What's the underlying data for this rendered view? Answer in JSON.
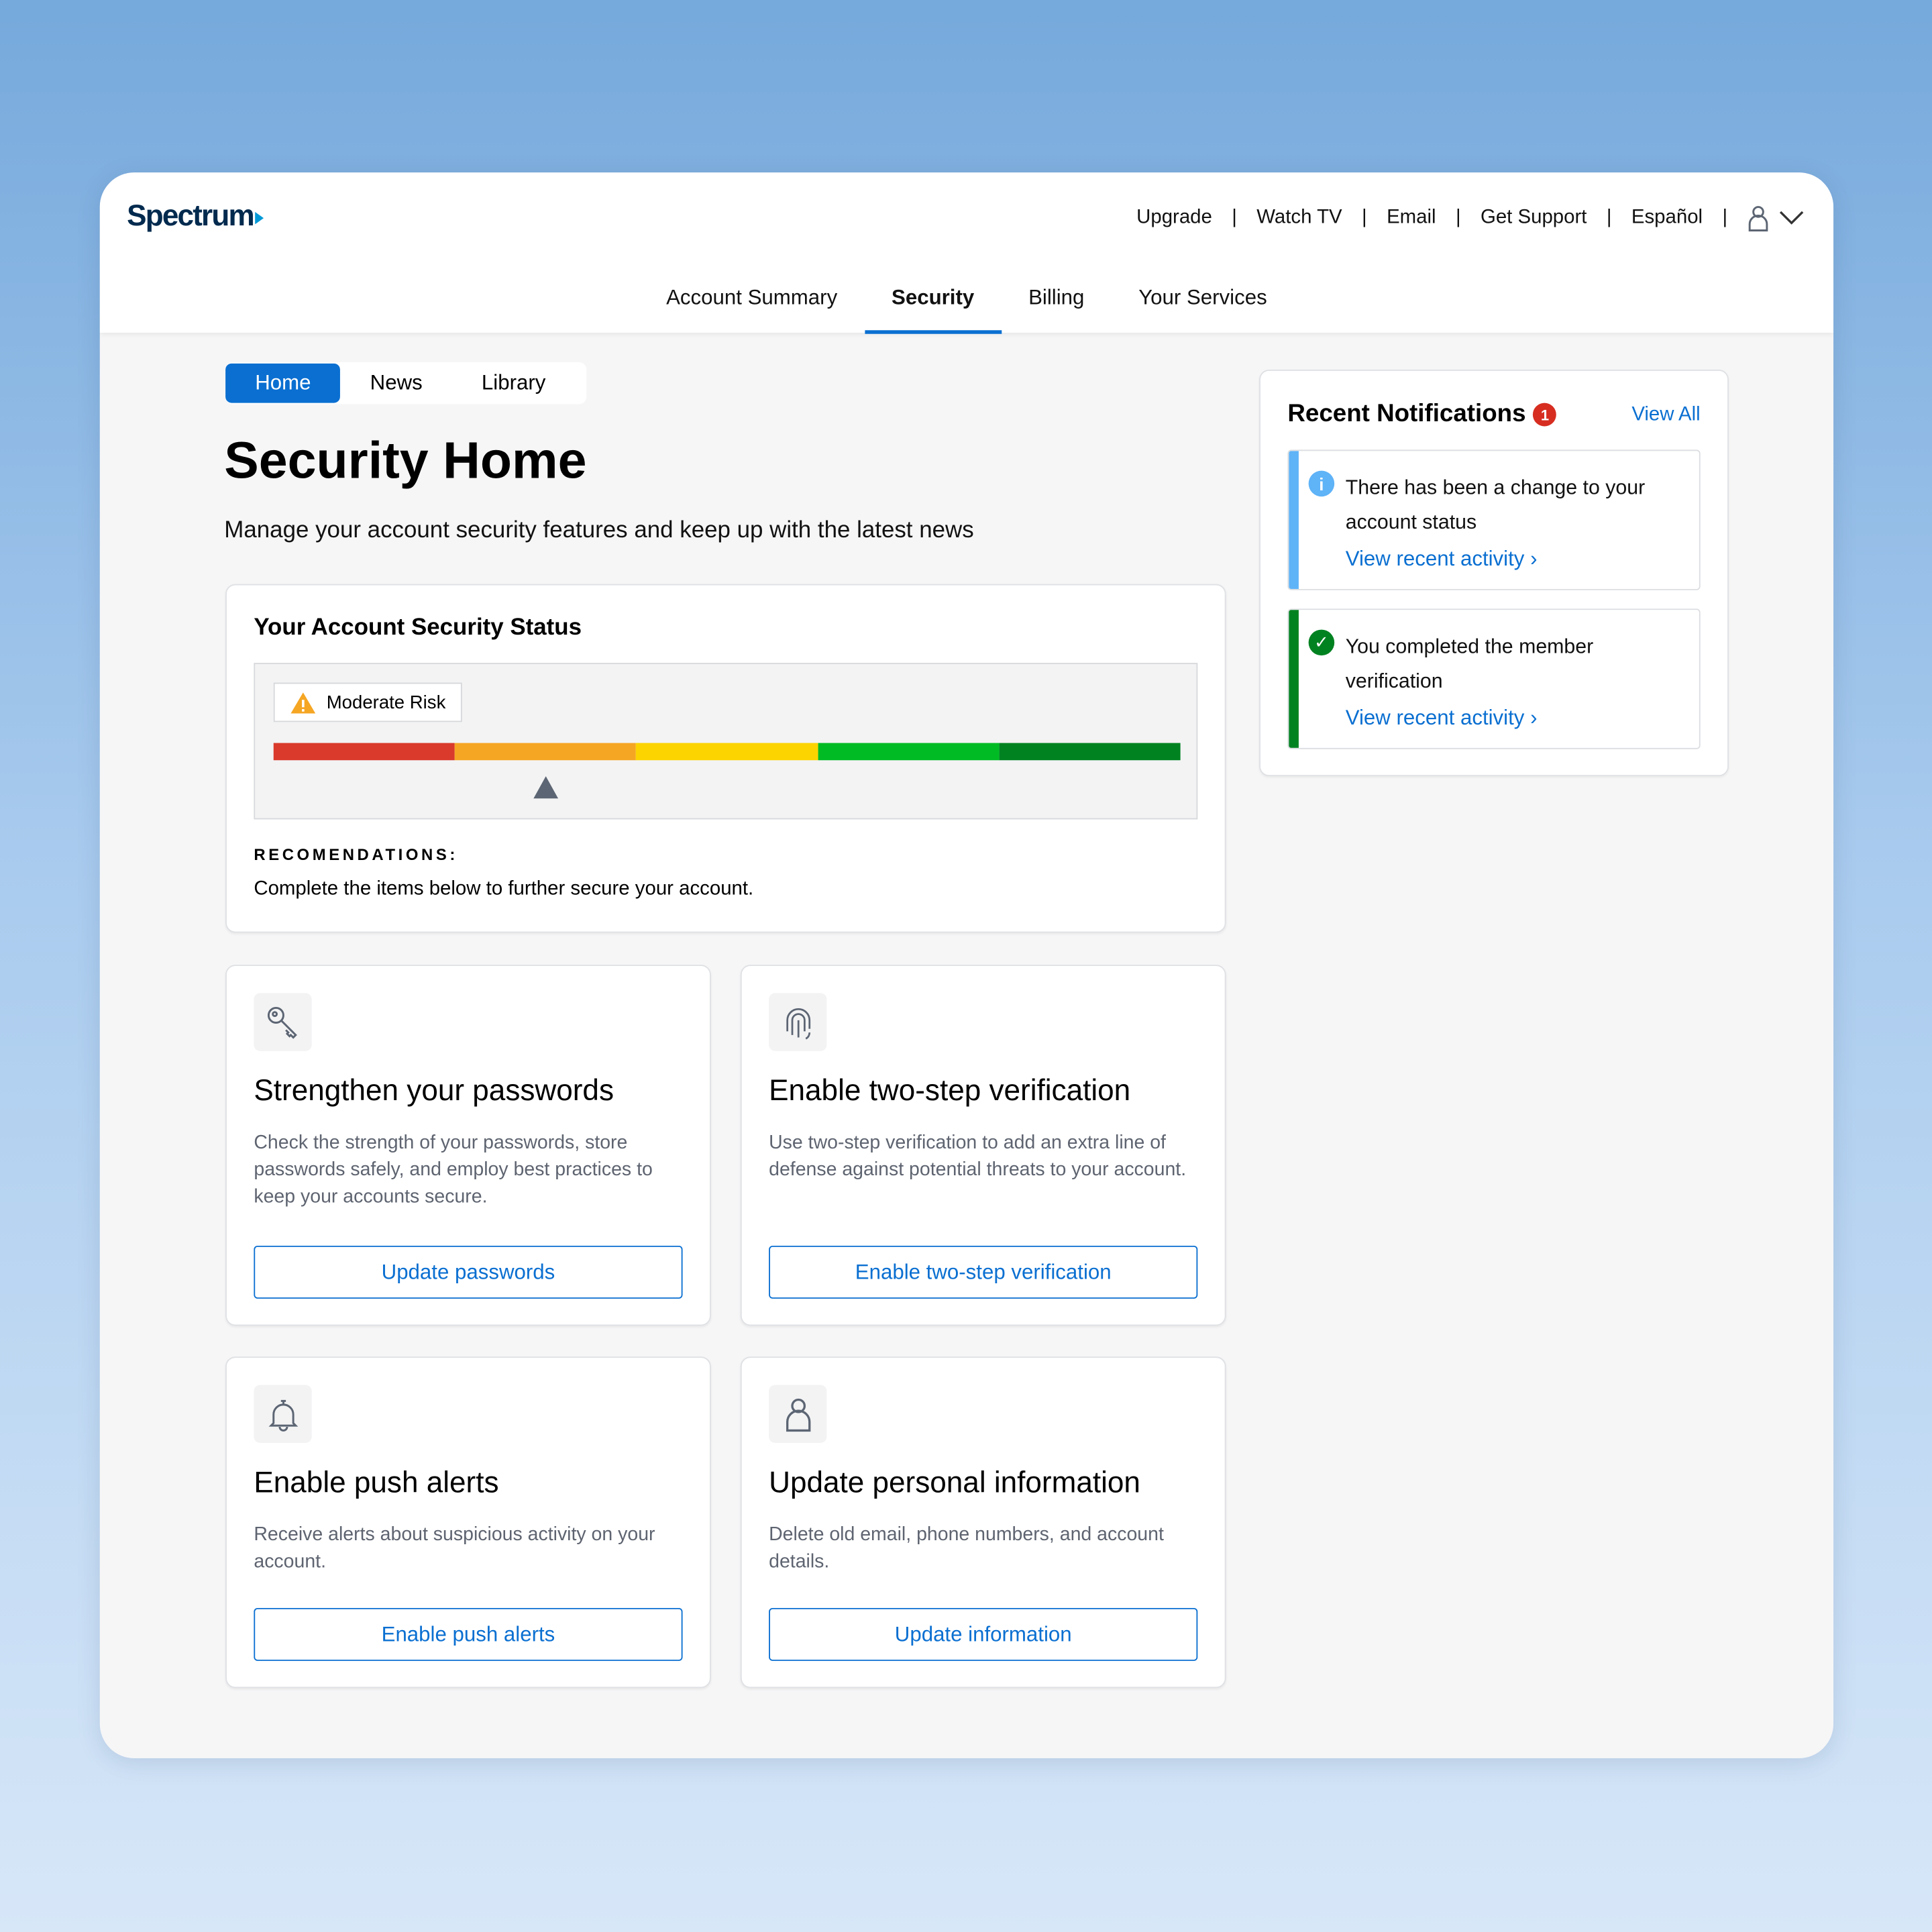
{
  "brand": {
    "logo": "Spectrum",
    "accent": "#0a6fd1"
  },
  "top_links": [
    "Upgrade",
    "Watch TV",
    "Email",
    "Get Support",
    "Español"
  ],
  "nav": {
    "tabs": [
      "Account Summary",
      "Security",
      "Billing",
      "Your Services"
    ],
    "active": "Security"
  },
  "subtabs": {
    "items": [
      "Home",
      "News",
      "Library"
    ],
    "active": "Home"
  },
  "page": {
    "title": "Security Home",
    "subtitle": "Manage your account security features and keep up with the latest news"
  },
  "status": {
    "title": "Your Account Security Status",
    "risk_label": "Moderate Risk",
    "risk_level_fraction": 0.3,
    "scale_colors": [
      "#d93a2b",
      "#f5a623",
      "#fcd400",
      "#00bb24",
      "#008221"
    ],
    "recommendations_heading": "RECOMENDATIONS:",
    "recommendations_text": "Complete the items below to further secure your account."
  },
  "tiles": [
    {
      "icon": "key-icon",
      "title": "Strengthen your passwords",
      "text": "Check the strength of your passwords, store passwords safely, and employ best practices to keep your accounts secure.",
      "button": "Update passwords"
    },
    {
      "icon": "fingerprint-icon",
      "title": "Enable two-step verification",
      "text": "Use two-step verification to add an extra line of defense against potential threats to your account.",
      "button": "Enable two-step verification"
    },
    {
      "icon": "bell-icon",
      "title": "Enable push alerts",
      "text": "Receive alerts about suspicious activity on your account.",
      "button": "Enable push alerts"
    },
    {
      "icon": "user-icon",
      "title": "Update personal information",
      "text": "Delete old email, phone numbers, and account details.",
      "button": "Update information"
    }
  ],
  "notifications": {
    "title": "Recent Notifications",
    "count": "1",
    "view_all": "View All",
    "items": [
      {
        "type": "info",
        "color": "#5fb3f7",
        "text": "There has been a change to your account status",
        "link": "View recent activity"
      },
      {
        "type": "success",
        "color": "#008221",
        "text": "You completed the member verification",
        "link": "View recent activity"
      }
    ]
  }
}
